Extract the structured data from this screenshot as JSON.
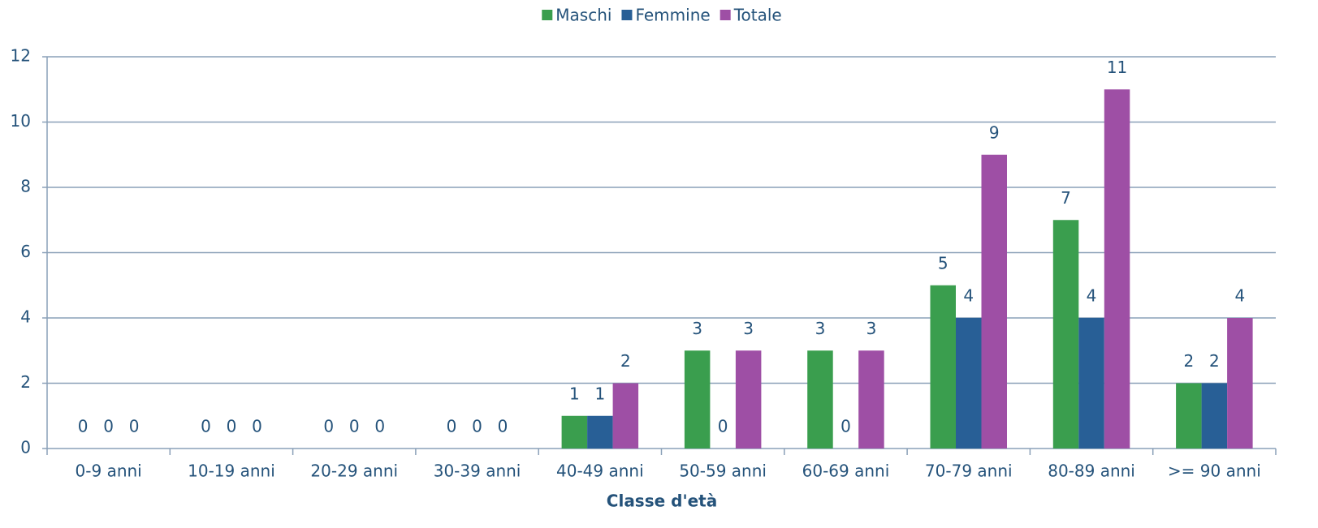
{
  "chart_data": {
    "type": "bar",
    "x_label": "Classe d'età",
    "categories": [
      "0-9 anni",
      "10-19 anni",
      "20-29 anni",
      "30-39 anni",
      "40-49 anni",
      "50-59 anni",
      "60-69 anni",
      "70-79 anni",
      "80-89 anni",
      ">= 90 anni"
    ],
    "series": [
      {
        "name": "Maschi",
        "color": "#3a9e4e",
        "values": [
          0,
          0,
          0,
          0,
          1,
          3,
          3,
          5,
          7,
          2
        ]
      },
      {
        "name": "Femmine",
        "color": "#285f96",
        "values": [
          0,
          0,
          0,
          0,
          1,
          0,
          0,
          4,
          4,
          2
        ]
      },
      {
        "name": "Totale",
        "color": "#9e4fa5",
        "values": [
          0,
          0,
          0,
          0,
          2,
          3,
          3,
          9,
          11,
          4
        ]
      }
    ],
    "ylim": [
      0,
      12
    ],
    "yticks": [
      0,
      2,
      4,
      6,
      8,
      10,
      12
    ],
    "grid": true,
    "legend": "top"
  }
}
